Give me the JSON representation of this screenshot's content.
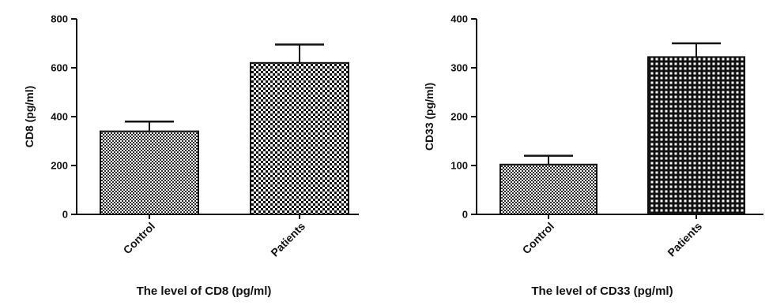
{
  "chart_data": [
    {
      "type": "bar",
      "categories": [
        "Control",
        "Patients"
      ],
      "values": [
        340,
        620
      ],
      "errors": [
        40,
        75
      ],
      "ylabel": "CD8 (pg/ml)",
      "xlabel": "The level of CD8 (pg/ml)",
      "ylim": [
        0,
        800
      ],
      "yticks": [
        0,
        200,
        400,
        600,
        800
      ],
      "bar_patterns": [
        "fine-checker",
        "coarse-checker"
      ]
    },
    {
      "type": "bar",
      "categories": [
        "Control",
        "Patients"
      ],
      "values": [
        102,
        322
      ],
      "errors": [
        18,
        28
      ],
      "ylabel": "CD33 (pg/ml)",
      "xlabel": "The level of CD33 (pg/ml)",
      "ylim": [
        0,
        400
      ],
      "yticks": [
        0,
        100,
        200,
        300,
        400
      ],
      "bar_patterns": [
        "fine-checker",
        "grid"
      ]
    }
  ]
}
